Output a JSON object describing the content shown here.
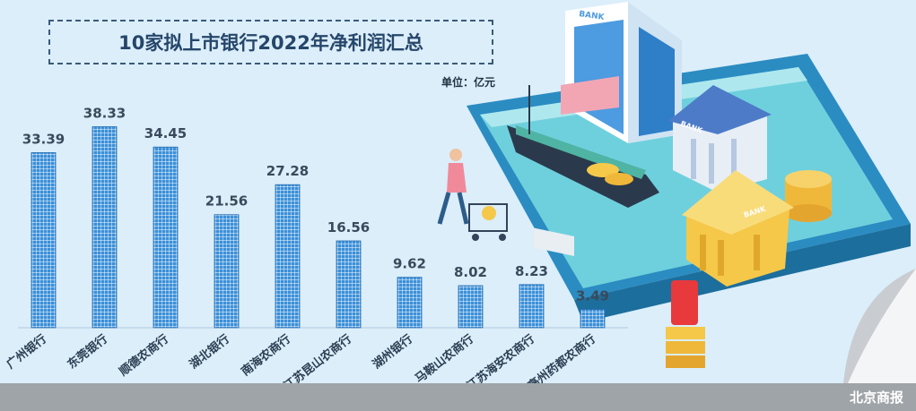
{
  "chart_data": {
    "type": "bar",
    "title": "10家拟上市银行2022年净利润汇总",
    "unit": "单位：亿元",
    "categories": [
      "广州银行",
      "东莞银行",
      "顺德农商行",
      "湖北银行",
      "南海农商行",
      "江苏昆山农商行",
      "湖州银行",
      "马鞍山农商行",
      "江苏海安农商行",
      "亳州药都农商行"
    ],
    "values": [
      33.39,
      38.33,
      34.45,
      21.56,
      27.28,
      16.56,
      9.62,
      8.02,
      8.23,
      3.49
    ],
    "value_labels": [
      "33.39",
      "38.33",
      "34.45",
      "21.56",
      "27.28",
      "16.56",
      "9.62",
      "8.02",
      "8.23",
      "3.49"
    ],
    "ylim": [
      0,
      42
    ],
    "grid": false,
    "legend": "none",
    "bar_color": "#3a8fd8"
  },
  "source": "北京商报",
  "bank_sign": "BANK",
  "colors": {
    "background": "#dbeefa",
    "title": "#26466a",
    "label": "#3a4a5c",
    "phone": "#2c8fc4"
  }
}
